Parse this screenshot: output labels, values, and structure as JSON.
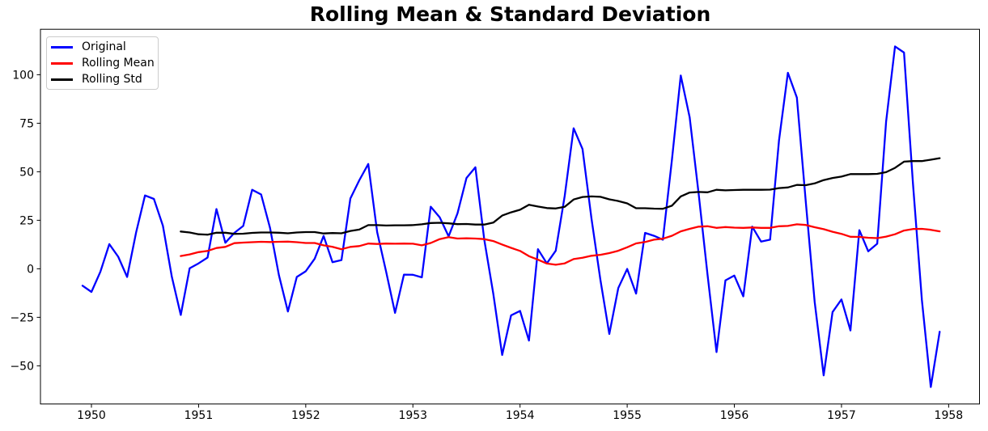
{
  "chart_data": {
    "type": "line",
    "title": "Rolling Mean & Standard Deviation",
    "grid": false,
    "legend": {
      "position": "upper-left",
      "items": [
        "Original",
        "Rolling Mean",
        "Rolling Std"
      ]
    },
    "x_axis": {
      "tick_values": [
        1950,
        1951,
        1952,
        1953,
        1954,
        1955,
        1956,
        1957,
        1958
      ],
      "tick_labels": [
        "1950",
        "1951",
        "1952",
        "1953",
        "1954",
        "1955",
        "1956",
        "1957",
        "1958"
      ],
      "range": [
        1949.52,
        1958.28
      ]
    },
    "y_axis": {
      "tick_values": [
        100,
        75,
        50,
        25,
        0,
        -25,
        -50
      ],
      "tick_labels": [
        "100",
        "75",
        "50",
        "25",
        "0",
        "−25",
        "−50"
      ],
      "range": [
        -69.5,
        123.5
      ]
    },
    "series": [
      {
        "name": "Original",
        "color": "#0000ff",
        "start_month": "1949-12",
        "frequency": "monthly",
        "values": [
          -8.7,
          -11.9,
          -1.6,
          12.7,
          6.2,
          -4.2,
          18.7,
          37.8,
          36.0,
          22.2,
          -4.0,
          -23.8,
          0.3,
          2.8,
          5.8,
          30.8,
          13.4,
          18.5,
          22.1,
          40.7,
          38.3,
          21.1,
          -3.3,
          -22.0,
          -4.2,
          -1.3,
          5.2,
          16.9,
          3.4,
          4.5,
          36.2,
          45.6,
          54.0,
          18.9,
          -1.5,
          -22.7,
          -3.0,
          -3.1,
          -4.4,
          32.0,
          26.5,
          16.7,
          28.6,
          46.8,
          52.3,
          14.9,
          -12.8,
          -44.4,
          -24.0,
          -21.7,
          -37.0,
          10.1,
          2.8,
          9.3,
          37.6,
          72.4,
          61.7,
          25.8,
          -5.7,
          -33.6,
          -9.9,
          -0.1,
          -12.8,
          18.5,
          17.0,
          15.0,
          55.8,
          99.6,
          78.1,
          38.7,
          -3.1,
          -42.9,
          -6.0,
          -3.5,
          -14.2,
          21.7,
          14.0,
          15.0,
          66.1,
          101.0,
          88.2,
          34.6,
          -17.1,
          -54.9,
          -22.3,
          -15.8,
          -31.8,
          19.9,
          9.0,
          12.9,
          75.9,
          114.6,
          111.4,
          44.3,
          -16.1,
          -60.9,
          -32.4
        ]
      },
      {
        "name": "Rolling Mean",
        "color": "#ff0000",
        "start_month": "1950-11",
        "frequency": "monthly",
        "values": [
          6.6,
          7.4,
          8.6,
          9.2,
          10.7,
          11.3,
          13.2,
          13.5,
          13.7,
          13.9,
          13.8,
          13.9,
          14.0,
          13.7,
          13.3,
          13.3,
          12.1,
          11.3,
          10.1,
          11.3,
          11.7,
          13.0,
          12.8,
          13.0,
          12.9,
          13.0,
          12.9,
          12.1,
          13.3,
          15.3,
          16.3,
          15.6,
          15.7,
          15.6,
          15.3,
          14.3,
          12.5,
          10.8,
          9.2,
          6.5,
          4.7,
          2.7,
          2.1,
          2.8,
          5.0,
          5.7,
          6.7,
          7.2,
          8.1,
          9.3,
          11.1,
          13.1,
          13.8,
          15.0,
          15.5,
          17.0,
          19.3,
          20.6,
          21.7,
          21.9,
          21.1,
          21.5,
          21.2,
          21.1,
          21.3,
          21.1,
          21.1,
          21.9,
          22.1,
          22.9,
          22.6,
          21.4,
          20.4,
          19.1,
          18.0,
          16.5,
          16.4,
          16.0,
          15.8,
          16.6,
          17.8,
          19.7,
          20.5,
          20.6,
          20.1,
          19.3
        ]
      },
      {
        "name": "Rolling Std",
        "color": "#000000",
        "start_month": "1950-11",
        "frequency": "monthly",
        "values": [
          19.2,
          18.7,
          17.8,
          17.6,
          18.6,
          18.6,
          18.0,
          18.1,
          18.5,
          18.7,
          18.7,
          18.6,
          18.3,
          18.7,
          18.9,
          18.9,
          18.2,
          18.4,
          18.3,
          19.5,
          20.2,
          22.5,
          22.5,
          22.3,
          22.4,
          22.4,
          22.5,
          22.9,
          23.6,
          23.7,
          23.4,
          23.0,
          23.1,
          22.8,
          22.8,
          23.8,
          27.4,
          29.1,
          30.4,
          33.0,
          32.1,
          31.3,
          31.1,
          31.9,
          35.7,
          37.0,
          37.3,
          37.1,
          35.8,
          34.9,
          33.7,
          31.2,
          31.2,
          31.0,
          30.9,
          32.5,
          37.3,
          39.3,
          39.6,
          39.4,
          40.7,
          40.4,
          40.6,
          40.7,
          40.7,
          40.7,
          40.8,
          41.6,
          41.9,
          43.2,
          43.1,
          44.0,
          45.7,
          46.8,
          47.5,
          48.8,
          48.8,
          48.8,
          48.9,
          49.8,
          52.0,
          55.2,
          55.5,
          55.5,
          56.2,
          57.0
        ]
      }
    ]
  }
}
